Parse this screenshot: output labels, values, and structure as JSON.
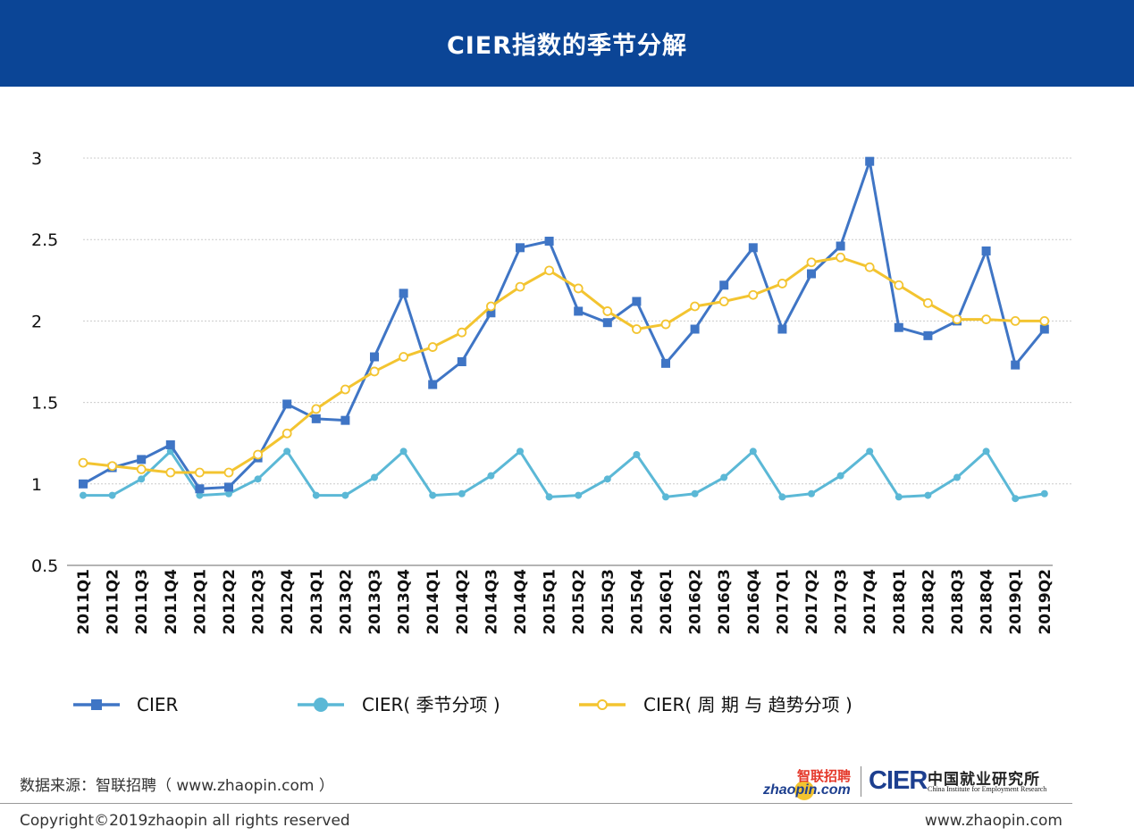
{
  "header": {
    "title": "CIER指数的季节分解"
  },
  "chart_data": {
    "type": "line",
    "title": "CIER指数的季节分解",
    "xlabel": "",
    "ylabel": "",
    "ylim": [
      0.5,
      3
    ],
    "yticks": [
      "0.5",
      "1",
      "1.5",
      "2",
      "2.5",
      "3"
    ],
    "grid": true,
    "legend_position": "bottom",
    "categories": [
      "2011Q1",
      "2011Q2",
      "2011Q3",
      "2011Q4",
      "2012Q1",
      "2012Q2",
      "2012Q3",
      "2012Q4",
      "2013Q1",
      "2013Q2",
      "2013Q3",
      "2013Q4",
      "2014Q1",
      "2014Q2",
      "2014Q3",
      "2014Q4",
      "2015Q1",
      "2015Q2",
      "2015Q3",
      "2015Q4",
      "2016Q1",
      "2016Q2",
      "2016Q3",
      "2016Q4",
      "2017Q1",
      "2017Q2",
      "2017Q3",
      "2017Q4",
      "2018Q1",
      "2018Q2",
      "2018Q3",
      "2018Q4",
      "2019Q1",
      "2019Q2"
    ],
    "series": [
      {
        "name": "CIER",
        "color": "#3f75c5",
        "marker": "square",
        "values": [
          1.0,
          1.1,
          1.15,
          1.24,
          0.97,
          0.98,
          1.16,
          1.49,
          1.4,
          1.39,
          1.78,
          2.17,
          1.61,
          1.75,
          2.05,
          2.45,
          2.49,
          2.06,
          1.99,
          2.12,
          1.74,
          1.95,
          2.22,
          2.45,
          1.95,
          2.29,
          2.46,
          2.98,
          1.96,
          1.91,
          2.0,
          2.43,
          1.73,
          1.95
        ]
      },
      {
        "name": "CIER( 季节分项 )",
        "color": "#5bb8d6",
        "marker": "circle",
        "values": [
          0.93,
          0.93,
          1.03,
          1.2,
          0.93,
          0.94,
          1.03,
          1.2,
          0.93,
          0.93,
          1.04,
          1.2,
          0.93,
          0.94,
          1.05,
          1.2,
          0.92,
          0.93,
          1.03,
          1.18,
          0.92,
          0.94,
          1.04,
          1.2,
          0.92,
          0.94,
          1.05,
          1.2,
          0.92,
          0.93,
          1.04,
          1.2,
          0.91,
          0.94
        ]
      },
      {
        "name": "CIER( 周 期 与 趋势分项 )",
        "color": "#f3c430",
        "marker": "hollow-circle",
        "values": [
          1.13,
          1.11,
          1.09,
          1.07,
          1.07,
          1.07,
          1.18,
          1.31,
          1.46,
          1.58,
          1.69,
          1.78,
          1.84,
          1.93,
          2.09,
          2.21,
          2.31,
          2.2,
          2.06,
          1.95,
          1.98,
          2.09,
          2.12,
          2.16,
          2.23,
          2.36,
          2.39,
          2.33,
          2.22,
          2.11,
          2.01,
          2.01,
          2.0,
          2.0
        ]
      }
    ]
  },
  "legend": {
    "items": [
      "CIER",
      "CIER( 季节分项 )",
      "CIER( 周 期 与 趋势分项 )"
    ]
  },
  "footer": {
    "source": "数据来源：智联招聘（ www.zhaopin.com ）",
    "copyright": "Copyright©2019zhaopin all rights reserved",
    "website": "www.zhaopin.com"
  },
  "logos": {
    "zhaopin_cn": "智联招聘",
    "zhaopin_en": "zhaopin.com",
    "cier": "CIER",
    "cier_cn": "中国就业研究所",
    "cier_en": "China Institute for Employment Research"
  }
}
